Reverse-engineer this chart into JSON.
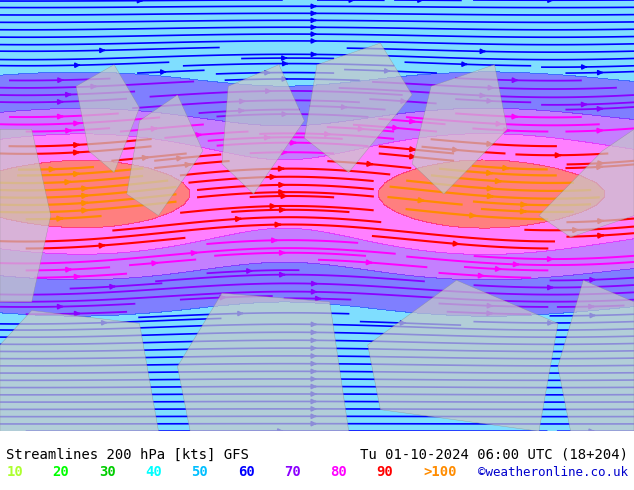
{
  "title_left": "Streamlines 200 hPa [kts] GFS",
  "title_right": "Tu 01-10-2024 06:00 UTC (18+204)",
  "credit": "©weatheronline.co.uk",
  "legend_values": [
    "10",
    "20",
    "30",
    "40",
    "50",
    "60",
    "70",
    "80",
    "90",
    ">100"
  ],
  "legend_colors": [
    "#adff2f",
    "#00ff00",
    "#00cd00",
    "#00ffff",
    "#00bfff",
    "#0000ff",
    "#8b00ff",
    "#ff00ff",
    "#ff0000",
    "#ff8c00"
  ],
  "bg_color": "#ffffff",
  "map_bg": "#90ee90",
  "land_color": "#c8c8c8",
  "speed_colors": {
    "10": "#adff2f",
    "20": "#00ff00",
    "30": "#00cd00",
    "40": "#00ffff",
    "50": "#00bfff",
    "60": "#0000ff",
    "70": "#8b00ff",
    "80": "#ff00ff",
    "90": "#ff0000",
    "100": "#ff8c00"
  },
  "figsize": [
    6.34,
    4.9
  ],
  "dpi": 100,
  "font_color": "#000000",
  "font_size_title": 10,
  "font_size_legend": 10
}
